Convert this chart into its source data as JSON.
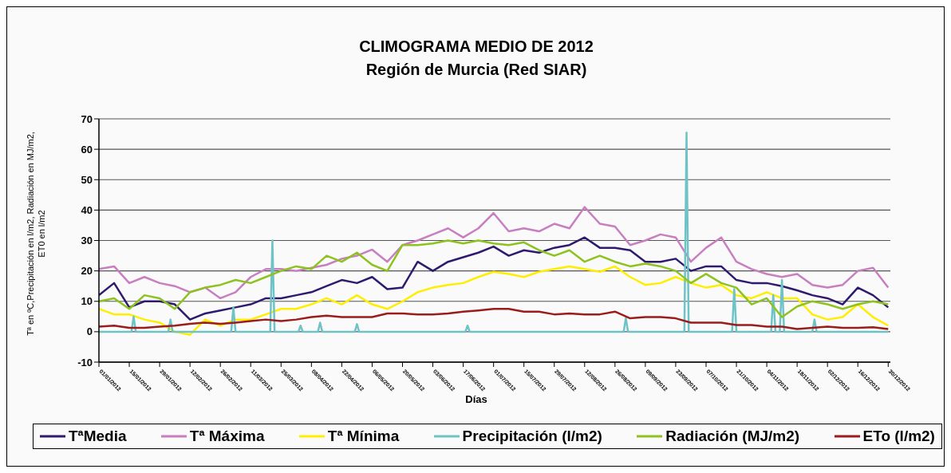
{
  "chart_data": {
    "type": "line",
    "title": "CLIMOGRAMA MEDIO DE 2012",
    "subtitle": "Región de Murcia (Red SIAR)",
    "xlabel": "Días",
    "ylabel": "Tª en ºC,Precipitación en l/m2, Radiación en MJ/m2, ET0 en l/m2",
    "x": [
      "2012-01-01",
      "2012-01-08",
      "2012-01-15",
      "2012-01-22",
      "2012-01-29",
      "2012-02-05",
      "2012-02-12",
      "2012-02-19",
      "2012-02-26",
      "2012-03-04",
      "2012-03-11",
      "2012-03-18",
      "2012-03-25",
      "2012-04-01",
      "2012-04-08",
      "2012-04-15",
      "2012-04-22",
      "2012-04-29",
      "2012-05-06",
      "2012-05-13",
      "2012-05-20",
      "2012-05-27",
      "2012-06-03",
      "2012-06-10",
      "2012-06-17",
      "2012-06-24",
      "2012-07-01",
      "2012-07-08",
      "2012-07-15",
      "2012-07-22",
      "2012-07-29",
      "2012-08-05",
      "2012-08-12",
      "2012-08-19",
      "2012-08-26",
      "2012-09-02",
      "2012-09-09",
      "2012-09-16",
      "2012-09-23",
      "2012-09-30",
      "2012-10-07",
      "2012-10-14",
      "2012-10-21",
      "2012-10-28",
      "2012-11-04",
      "2012-11-11",
      "2012-11-18",
      "2012-11-25",
      "2012-12-02",
      "2012-12-09",
      "2012-12-16",
      "2012-12-23",
      "2012-12-30"
    ],
    "series": [
      {
        "name": "TªMedia",
        "color": "#2e1a6e",
        "values": [
          12,
          16,
          8,
          10,
          10,
          9,
          4,
          6,
          7,
          8,
          9,
          11,
          11,
          12,
          13,
          15,
          17,
          16,
          18,
          14,
          14.5,
          23,
          20,
          23,
          24.5,
          26,
          28,
          25,
          26.8,
          26,
          27.6,
          28.5,
          31,
          27.6,
          27.6,
          26.8,
          23,
          23,
          24,
          20,
          21.5,
          21.5,
          17,
          16,
          16,
          15,
          13.6,
          12,
          11,
          9,
          14.5,
          12,
          8
        ]
      },
      {
        "name": "Tª Máxima",
        "color": "#c77fbf",
        "values": [
          20.6,
          21.5,
          16,
          18,
          16,
          15,
          13,
          14.5,
          11,
          13,
          18,
          20.6,
          20.6,
          20,
          21,
          22,
          24,
          25,
          27,
          23,
          28.5,
          30,
          32,
          34,
          31,
          34,
          39,
          33,
          34,
          33,
          35.5,
          34,
          41,
          35.5,
          34.6,
          28.5,
          30,
          32,
          31,
          23,
          27.6,
          31,
          23,
          20.6,
          19,
          18,
          19,
          15.4,
          14.5,
          15.4,
          20,
          21,
          14.5
        ]
      },
      {
        "name": "Tª Mínima",
        "color": "#ffee00",
        "values": [
          7.5,
          5.7,
          5.7,
          4,
          3,
          0,
          -1,
          4,
          2,
          4,
          4,
          5.7,
          7.5,
          7.5,
          9,
          11,
          9,
          12,
          9,
          7.5,
          10,
          13,
          14.5,
          15.4,
          16,
          18,
          19.7,
          19,
          18,
          19.7,
          20.6,
          21.5,
          20.6,
          19.7,
          21.5,
          18,
          15.4,
          16,
          18,
          16,
          14.5,
          15.4,
          12,
          11,
          13,
          11,
          11,
          5.7,
          4,
          4.8,
          9,
          4.8,
          2
        ]
      },
      {
        "name": "Precipitación (l/m2)",
        "color": "#6fc3c6",
        "x": [
          "2012-01-01",
          "2012-01-16",
          "2012-01-17",
          "2012-01-18",
          "2012-02-02",
          "2012-02-03",
          "2012-02-04",
          "2012-03-02",
          "2012-03-03",
          "2012-03-04",
          "2012-03-20",
          "2012-03-21",
          "2012-03-22",
          "2012-04-02",
          "2012-04-03",
          "2012-04-04",
          "2012-04-11",
          "2012-04-12",
          "2012-04-13",
          "2012-04-28",
          "2012-04-29",
          "2012-04-30",
          "2012-06-18",
          "2012-06-19",
          "2012-06-20",
          "2012-08-30",
          "2012-08-31",
          "2012-09-01",
          "2012-09-27",
          "2012-09-28",
          "2012-09-29",
          "2012-10-19",
          "2012-10-20",
          "2012-10-21",
          "2012-11-06",
          "2012-11-07",
          "2012-11-08",
          "2012-11-10",
          "2012-11-11",
          "2012-11-12",
          "2012-11-25",
          "2012-11-26",
          "2012-11-27",
          "2012-12-30"
        ],
        "values": [
          0,
          0,
          5,
          0,
          0,
          4,
          0,
          0,
          8,
          0,
          0,
          30,
          0,
          0,
          2,
          0,
          0,
          3,
          0,
          0,
          2.5,
          0,
          0,
          2,
          0,
          0,
          4.5,
          0,
          0,
          65.5,
          0,
          0,
          14,
          0,
          0,
          12,
          0,
          0,
          17,
          0,
          0,
          4,
          0,
          0
        ]
      },
      {
        "name": "Radiación (MJ/m2)",
        "color": "#8dc21f",
        "values": [
          10,
          11,
          7.5,
          12,
          11,
          7.5,
          13,
          14.5,
          15.4,
          17,
          16,
          18,
          20,
          21.5,
          20.6,
          25,
          23,
          26,
          22,
          20,
          28.5,
          28.5,
          29,
          30,
          29,
          30,
          29,
          28.5,
          29.4,
          26.8,
          25,
          26.8,
          23,
          25,
          23,
          21.5,
          22.4,
          21.5,
          20,
          16,
          19,
          16,
          14.5,
          9,
          11,
          4.8,
          8.3,
          10,
          9,
          7.5,
          9,
          10,
          9
        ]
      },
      {
        "name": "ETo (l/m2)",
        "color": "#9b1c1c",
        "values": [
          1.7,
          2,
          1.3,
          1.3,
          1.7,
          2,
          2.6,
          3,
          2.6,
          3,
          3.5,
          4,
          3.5,
          4,
          4.8,
          5.3,
          4.8,
          4.8,
          4.8,
          6,
          6,
          5.7,
          5.7,
          6,
          6.6,
          7,
          7.5,
          7.5,
          6.6,
          6.6,
          5.7,
          6,
          5.7,
          5.7,
          6.6,
          4.4,
          4.8,
          4.8,
          4.4,
          3,
          3,
          3,
          2.2,
          2.2,
          1.7,
          1.7,
          0.9,
          1.3,
          1.7,
          1.3,
          1.3,
          1.5,
          0.9
        ]
      }
    ],
    "xlim": [
      "2012-01-01",
      "2012-12-31"
    ],
    "xticks": [
      {
        "value": "2012-01-01",
        "label": "01/01/2012"
      },
      {
        "value": "2012-01-15",
        "label": "15/01/2012"
      },
      {
        "value": "2012-01-29",
        "label": "29/01/2012"
      },
      {
        "value": "2012-02-12",
        "label": "12/02/2012"
      },
      {
        "value": "2012-02-26",
        "label": "26/02/2012"
      },
      {
        "value": "2012-03-11",
        "label": "11/03/2012"
      },
      {
        "value": "2012-03-25",
        "label": "25/03/2012"
      },
      {
        "value": "2012-04-08",
        "label": "08/04/2012"
      },
      {
        "value": "2012-04-22",
        "label": "22/04/2012"
      },
      {
        "value": "2012-05-06",
        "label": "06/05/2012"
      },
      {
        "value": "2012-05-20",
        "label": "20/05/2012"
      },
      {
        "value": "2012-06-03",
        "label": "03/06/2012"
      },
      {
        "value": "2012-06-17",
        "label": "17/06/2012"
      },
      {
        "value": "2012-07-01",
        "label": "01/07/2012"
      },
      {
        "value": "2012-07-15",
        "label": "15/07/2012"
      },
      {
        "value": "2012-07-29",
        "label": "29/07/2012"
      },
      {
        "value": "2012-08-12",
        "label": "12/08/2012"
      },
      {
        "value": "2012-08-26",
        "label": "26/08/2012"
      },
      {
        "value": "2012-09-09",
        "label": "09/09/2012"
      },
      {
        "value": "2012-09-23",
        "label": "23/09/2012"
      },
      {
        "value": "2012-10-07",
        "label": "07/10/2012"
      },
      {
        "value": "2012-10-21",
        "label": "21/10/2012"
      },
      {
        "value": "2012-11-04",
        "label": "04/11/2012"
      },
      {
        "value": "2012-11-18",
        "label": "18/11/2012"
      },
      {
        "value": "2012-12-02",
        "label": "02/12/2012"
      },
      {
        "value": "2012-12-16",
        "label": "16/12/2012"
      },
      {
        "value": "2012-12-30",
        "label": "30/12/2012"
      }
    ],
    "ylim": [
      -10,
      70
    ],
    "yticks": [
      -10,
      0,
      10,
      20,
      30,
      40,
      50,
      60,
      70
    ],
    "grid": "y",
    "legend": "bottom"
  }
}
